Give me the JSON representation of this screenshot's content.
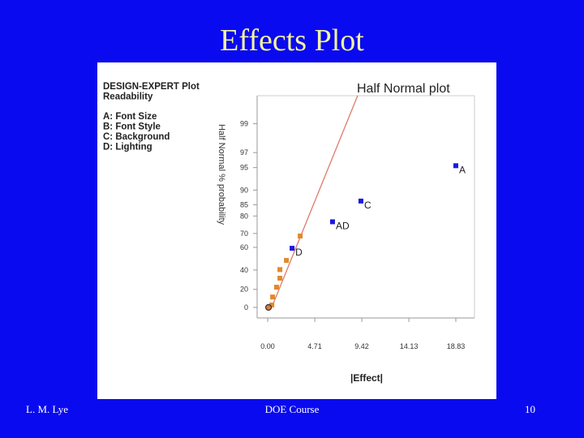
{
  "slide": {
    "title": "Effects Plot",
    "footer_left": "L. M. Lye",
    "footer_center": "DOE Course",
    "footer_right": "10"
  },
  "chart_data": {
    "type": "scatter",
    "title": "Half Normal plot",
    "legend_text": [
      "DESIGN-EXPERT Plot",
      "Readability",
      "A: Font Size",
      "B: Font Style",
      "C: Background",
      "D: Lighting"
    ],
    "xlabel": "|Effect|",
    "ylabel": "Half Normal % probability",
    "yscale": "half-normal",
    "xlim": [
      -1.06,
      20.7
    ],
    "xticks": [
      {
        "value": 0,
        "label": "0.00"
      },
      4.71,
      9.42,
      14.13,
      18.83
    ],
    "ylim": [
      0,
      99.7
    ],
    "yticks": [
      0,
      20,
      40,
      60,
      70,
      80,
      85,
      90,
      95,
      97,
      99
    ],
    "series": [
      {
        "color": "#1a1adc",
        "marker": "square",
        "x": [
          18.83,
          9.33,
          6.49,
          2.44
        ],
        "values": [
          95.3,
          86.4,
          77.0,
          59.3
        ],
        "point_labels": [
          "A",
          "C",
          "AD",
          "D"
        ]
      },
      {
        "color": "#e08a2c",
        "marker": "square",
        "x": [
          3.25,
          1.87,
          1.22,
          1.22,
          0.89,
          0.49,
          0.41
        ],
        "values": [
          68.3,
          49.0,
          40.4,
          31.8,
          22.3,
          11.6,
          2.7
        ]
      },
      {
        "color": "#e07a3a",
        "marker": "circle",
        "x": [
          0.08
        ],
        "values": [
          0
        ]
      }
    ],
    "fit_line": {
      "color": "#e07a6a",
      "x": [
        0.4,
        9.0
      ],
      "values": [
        0,
        99.7
      ]
    }
  }
}
